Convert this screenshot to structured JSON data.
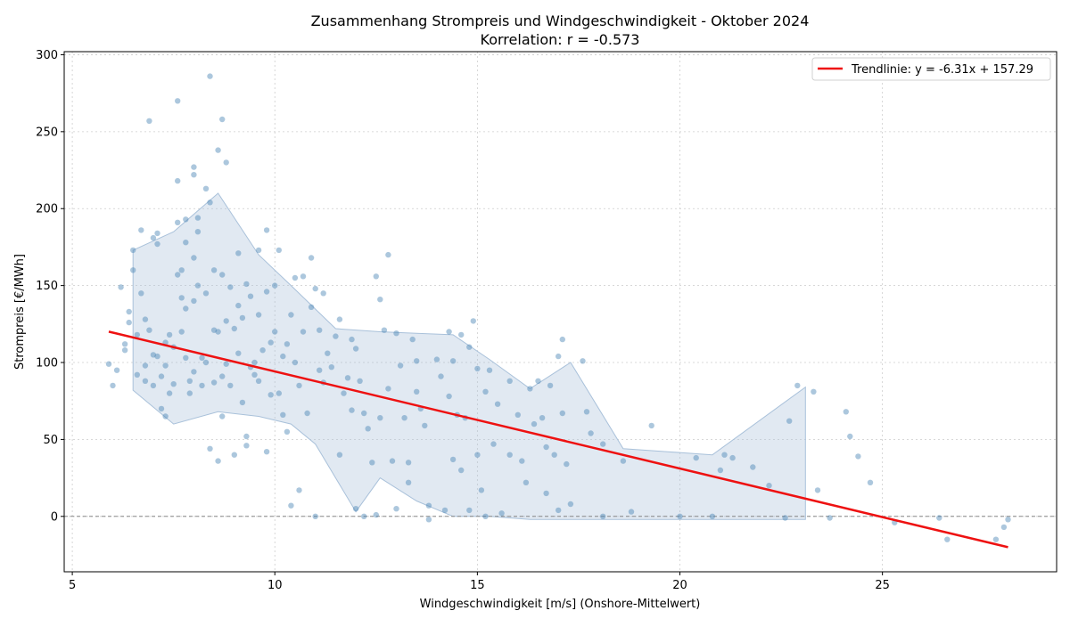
{
  "chart_data": {
    "type": "scatter",
    "title": "Zusammenhang Strompreis und Windgeschwindigkeit - Oktober 2024",
    "subtitle": "Korrelation: r = -0.573",
    "xlabel": "Windgeschwindigkeit [m/s] (Onshore-Mittelwert)",
    "ylabel": "Strompreis [€/MWh]",
    "xlim": [
      4.8,
      29.3
    ],
    "ylim": [
      -36,
      302
    ],
    "xticks": [
      5,
      10,
      15,
      20,
      25
    ],
    "yticks": [
      0,
      50,
      100,
      150,
      200,
      250,
      300
    ],
    "grid": true,
    "legend_position": "top-right",
    "colors": {
      "points": "#4682b4",
      "band": "#a9c1da",
      "trend": "#ee1111",
      "zero_line": "#888888",
      "grid": "#cccccc"
    },
    "trendline": {
      "label": "Trendlinie: y = -6.31x + 157.29",
      "slope": -6.31,
      "intercept": 157.29,
      "x_range": [
        5.9,
        28.1
      ]
    },
    "reference_line_y": 0,
    "band": {
      "upper": [
        [
          6.5,
          173
        ],
        [
          7.5,
          185
        ],
        [
          8.6,
          210
        ],
        [
          9.6,
          170
        ],
        [
          10.4,
          150
        ],
        [
          11.5,
          122
        ],
        [
          12.6,
          120
        ],
        [
          13.5,
          119
        ],
        [
          14.4,
          118
        ],
        [
          15.3,
          102
        ],
        [
          16.3,
          83
        ],
        [
          17.3,
          100
        ],
        [
          18.6,
          44
        ],
        [
          19.7,
          42
        ],
        [
          20.8,
          40
        ],
        [
          23.1,
          84
        ]
      ],
      "lower": [
        [
          23.1,
          -2
        ],
        [
          20.8,
          -2
        ],
        [
          19.7,
          -2
        ],
        [
          18.6,
          -2
        ],
        [
          17.3,
          -2
        ],
        [
          16.3,
          -2
        ],
        [
          15.3,
          0
        ],
        [
          14.4,
          0
        ],
        [
          13.5,
          10
        ],
        [
          12.6,
          25
        ],
        [
          12.0,
          3
        ],
        [
          11.0,
          47
        ],
        [
          10.4,
          60
        ],
        [
          9.6,
          65
        ],
        [
          8.6,
          68
        ],
        [
          7.5,
          60
        ],
        [
          6.5,
          82
        ]
      ]
    },
    "points": [
      [
        5.9,
        99
      ],
      [
        6.0,
        85
      ],
      [
        6.1,
        95
      ],
      [
        6.2,
        149
      ],
      [
        6.3,
        112
      ],
      [
        6.3,
        108
      ],
      [
        6.4,
        126
      ],
      [
        6.4,
        133
      ],
      [
        6.5,
        173
      ],
      [
        6.5,
        160
      ],
      [
        6.6,
        118
      ],
      [
        6.6,
        92
      ],
      [
        6.7,
        186
      ],
      [
        6.7,
        145
      ],
      [
        6.8,
        128
      ],
      [
        6.8,
        98
      ],
      [
        6.8,
        88
      ],
      [
        6.9,
        257
      ],
      [
        6.9,
        121
      ],
      [
        7.0,
        181
      ],
      [
        7.0,
        105
      ],
      [
        7.0,
        85
      ],
      [
        7.1,
        184
      ],
      [
        7.1,
        177
      ],
      [
        7.1,
        104
      ],
      [
        7.2,
        91
      ],
      [
        7.2,
        70
      ],
      [
        7.3,
        113
      ],
      [
        7.3,
        98
      ],
      [
        7.3,
        65
      ],
      [
        7.4,
        80
      ],
      [
        7.4,
        118
      ],
      [
        7.5,
        110
      ],
      [
        7.5,
        86
      ],
      [
        7.6,
        270
      ],
      [
        7.6,
        218
      ],
      [
        7.6,
        191
      ],
      [
        7.6,
        157
      ],
      [
        7.7,
        160
      ],
      [
        7.7,
        142
      ],
      [
        7.7,
        120
      ],
      [
        7.8,
        193
      ],
      [
        7.8,
        178
      ],
      [
        7.8,
        135
      ],
      [
        7.8,
        103
      ],
      [
        7.9,
        88
      ],
      [
        7.9,
        80
      ],
      [
        8.0,
        227
      ],
      [
        8.0,
        222
      ],
      [
        8.0,
        168
      ],
      [
        8.0,
        140
      ],
      [
        8.0,
        94
      ],
      [
        8.1,
        194
      ],
      [
        8.1,
        185
      ],
      [
        8.1,
        150
      ],
      [
        8.2,
        103
      ],
      [
        8.2,
        85
      ],
      [
        8.3,
        213
      ],
      [
        8.3,
        145
      ],
      [
        8.3,
        100
      ],
      [
        8.4,
        286
      ],
      [
        8.4,
        204
      ],
      [
        8.4,
        44
      ],
      [
        8.5,
        160
      ],
      [
        8.5,
        121
      ],
      [
        8.5,
        87
      ],
      [
        8.6,
        238
      ],
      [
        8.6,
        120
      ],
      [
        8.6,
        36
      ],
      [
        8.7,
        258
      ],
      [
        8.7,
        157
      ],
      [
        8.7,
        91
      ],
      [
        8.7,
        65
      ],
      [
        8.8,
        230
      ],
      [
        8.8,
        127
      ],
      [
        8.8,
        99
      ],
      [
        8.9,
        149
      ],
      [
        8.9,
        85
      ],
      [
        9.0,
        122
      ],
      [
        9.0,
        40
      ],
      [
        9.1,
        171
      ],
      [
        9.1,
        137
      ],
      [
        9.1,
        106
      ],
      [
        9.2,
        129
      ],
      [
        9.2,
        74
      ],
      [
        9.3,
        151
      ],
      [
        9.3,
        52
      ],
      [
        9.3,
        46
      ],
      [
        9.4,
        143
      ],
      [
        9.4,
        97
      ],
      [
        9.5,
        100
      ],
      [
        9.5,
        92
      ],
      [
        9.6,
        173
      ],
      [
        9.6,
        131
      ],
      [
        9.6,
        88
      ],
      [
        9.7,
        108
      ],
      [
        9.8,
        186
      ],
      [
        9.8,
        146
      ],
      [
        9.8,
        42
      ],
      [
        9.9,
        113
      ],
      [
        9.9,
        79
      ],
      [
        10.0,
        150
      ],
      [
        10.0,
        120
      ],
      [
        10.1,
        173
      ],
      [
        10.1,
        80
      ],
      [
        10.2,
        104
      ],
      [
        10.2,
        66
      ],
      [
        10.3,
        112
      ],
      [
        10.3,
        55
      ],
      [
        10.4,
        131
      ],
      [
        10.4,
        7
      ],
      [
        10.5,
        155
      ],
      [
        10.5,
        100
      ],
      [
        10.6,
        17
      ],
      [
        10.6,
        85
      ],
      [
        10.7,
        156
      ],
      [
        10.7,
        120
      ],
      [
        10.8,
        67
      ],
      [
        10.9,
        168
      ],
      [
        10.9,
        136
      ],
      [
        11.0,
        148
      ],
      [
        11.0,
        0
      ],
      [
        11.1,
        121
      ],
      [
        11.1,
        95
      ],
      [
        11.2,
        145
      ],
      [
        11.2,
        87
      ],
      [
        11.3,
        106
      ],
      [
        11.4,
        97
      ],
      [
        11.5,
        117
      ],
      [
        11.6,
        128
      ],
      [
        11.6,
        40
      ],
      [
        11.7,
        80
      ],
      [
        11.8,
        90
      ],
      [
        11.9,
        115
      ],
      [
        11.9,
        69
      ],
      [
        12.0,
        109
      ],
      [
        12.0,
        5
      ],
      [
        12.1,
        88
      ],
      [
        12.2,
        67
      ],
      [
        12.2,
        0
      ],
      [
        12.3,
        57
      ],
      [
        12.4,
        35
      ],
      [
        12.5,
        156
      ],
      [
        12.5,
        1
      ],
      [
        12.6,
        141
      ],
      [
        12.6,
        64
      ],
      [
        12.7,
        121
      ],
      [
        12.8,
        170
      ],
      [
        12.8,
        83
      ],
      [
        12.9,
        36
      ],
      [
        13.0,
        119
      ],
      [
        13.0,
        5
      ],
      [
        13.1,
        98
      ],
      [
        13.2,
        64
      ],
      [
        13.3,
        35
      ],
      [
        13.3,
        22
      ],
      [
        13.4,
        115
      ],
      [
        13.5,
        101
      ],
      [
        13.5,
        81
      ],
      [
        13.6,
        70
      ],
      [
        13.7,
        59
      ],
      [
        13.8,
        7
      ],
      [
        13.8,
        -2
      ],
      [
        14.0,
        102
      ],
      [
        14.1,
        91
      ],
      [
        14.2,
        4
      ],
      [
        14.3,
        120
      ],
      [
        14.3,
        78
      ],
      [
        14.4,
        101
      ],
      [
        14.4,
        37
      ],
      [
        14.5,
        66
      ],
      [
        14.6,
        30
      ],
      [
        14.6,
        118
      ],
      [
        14.7,
        64
      ],
      [
        14.8,
        110
      ],
      [
        14.8,
        4
      ],
      [
        14.9,
        127
      ],
      [
        15.0,
        96
      ],
      [
        15.0,
        40
      ],
      [
        15.1,
        17
      ],
      [
        15.2,
        81
      ],
      [
        15.2,
        0
      ],
      [
        15.3,
        95
      ],
      [
        15.4,
        47
      ],
      [
        15.5,
        73
      ],
      [
        15.6,
        2
      ],
      [
        15.8,
        88
      ],
      [
        15.8,
        40
      ],
      [
        16.0,
        66
      ],
      [
        16.1,
        36
      ],
      [
        16.2,
        22
      ],
      [
        16.3,
        83
      ],
      [
        16.4,
        60
      ],
      [
        16.5,
        88
      ],
      [
        16.6,
        64
      ],
      [
        16.7,
        45
      ],
      [
        16.7,
        15
      ],
      [
        16.8,
        85
      ],
      [
        16.9,
        40
      ],
      [
        17.0,
        104
      ],
      [
        17.0,
        4
      ],
      [
        17.1,
        115
      ],
      [
        17.1,
        67
      ],
      [
        17.2,
        34
      ],
      [
        17.3,
        8
      ],
      [
        17.6,
        101
      ],
      [
        17.7,
        68
      ],
      [
        17.8,
        54
      ],
      [
        18.1,
        47
      ],
      [
        18.1,
        0
      ],
      [
        18.6,
        36
      ],
      [
        18.8,
        3
      ],
      [
        19.3,
        59
      ],
      [
        20.0,
        0
      ],
      [
        20.4,
        38
      ],
      [
        20.8,
        0
      ],
      [
        21.0,
        30
      ],
      [
        21.1,
        40
      ],
      [
        21.3,
        38
      ],
      [
        21.8,
        32
      ],
      [
        22.2,
        20
      ],
      [
        22.6,
        -1
      ],
      [
        22.7,
        62
      ],
      [
        22.9,
        85
      ],
      [
        23.3,
        81
      ],
      [
        23.4,
        17
      ],
      [
        23.7,
        -1
      ],
      [
        24.1,
        68
      ],
      [
        24.2,
        52
      ],
      [
        24.4,
        39
      ],
      [
        24.7,
        22
      ],
      [
        25.3,
        -4
      ],
      [
        26.4,
        -1
      ],
      [
        26.6,
        -15
      ],
      [
        27.8,
        -15
      ],
      [
        28.0,
        -7
      ],
      [
        28.1,
        -2
      ]
    ]
  }
}
